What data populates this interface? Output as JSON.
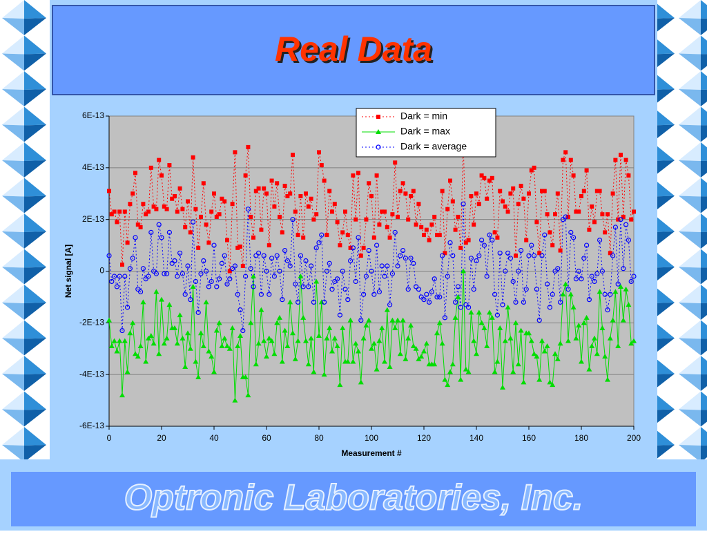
{
  "title": "Real Data",
  "footer": "Optronic Laboratories, Inc.",
  "chart_data": {
    "type": "line",
    "xlabel": "Measurement #",
    "ylabel": "Net signal [A]",
    "xlim": [
      0,
      200
    ],
    "xticks": [
      0,
      20,
      40,
      60,
      80,
      100,
      120,
      140,
      160,
      180,
      200
    ],
    "ylim": [
      -6e-13,
      6e-13
    ],
    "yticks": [
      {
        "value": -6e-13,
        "label": "-6E-13"
      },
      {
        "value": -4e-13,
        "label": "-4E-13"
      },
      {
        "value": -2e-13,
        "label": "-2E-13"
      },
      0,
      {
        "value": 2e-13,
        "label": "2E-13"
      },
      {
        "value": 4e-13,
        "label": "4E-13"
      },
      {
        "value": 6e-13,
        "label": "6E-13"
      }
    ],
    "grid": true,
    "legend": "top",
    "x": [
      0,
      1,
      2,
      3,
      4,
      5,
      6,
      7,
      8,
      9,
      10,
      11,
      12,
      13,
      14,
      15,
      16,
      17,
      18,
      19,
      20,
      21,
      22,
      23,
      24,
      25,
      26,
      27,
      28,
      29,
      30,
      31,
      32,
      33,
      34,
      35,
      36,
      37,
      38,
      39,
      40,
      41,
      42,
      43,
      44,
      45,
      46,
      47,
      48,
      49,
      50,
      51,
      52,
      53,
      54,
      55,
      56,
      57,
      58,
      59,
      60,
      61,
      62,
      63,
      64,
      65,
      66,
      67,
      68,
      69,
      70,
      71,
      72,
      73,
      74,
      75,
      76,
      77,
      78,
      79,
      80,
      81,
      82,
      83,
      84,
      85,
      86,
      87,
      88,
      89,
      90,
      91,
      92,
      93,
      94,
      95,
      96,
      97,
      98,
      99,
      100,
      101,
      102,
      103,
      104,
      105,
      106,
      107,
      108,
      109,
      110,
      111,
      112,
      113,
      114,
      115,
      116,
      117,
      118,
      119,
      120,
      121,
      122,
      123,
      124,
      125,
      126,
      127,
      128,
      129,
      130,
      131,
      132,
      133,
      134,
      135,
      136,
      137,
      138,
      139,
      140,
      141,
      142,
      143,
      144,
      145,
      146,
      147,
      148,
      149,
      150,
      151,
      152,
      153,
      154,
      155,
      156,
      157,
      158,
      159,
      160,
      161,
      162,
      163,
      164,
      165,
      166,
      167,
      168,
      169,
      170,
      171,
      172,
      173,
      174,
      175,
      176,
      177,
      178,
      179,
      180,
      181,
      182,
      183,
      184,
      185,
      186,
      187,
      188,
      189,
      190,
      191,
      192,
      193,
      194,
      195,
      196,
      197,
      198,
      199,
      200
    ],
    "series": [
      {
        "name": "Dark = min",
        "color": "#ff0000",
        "marker": "square",
        "line_style": "dotted",
        "values": [
          3.1e-13,
          2.2e-13,
          2.3e-13,
          1.9e-13,
          2.3e-13,
          2.5e-14,
          2.3e-13,
          1.1e-13,
          2.6e-13,
          3e-13,
          3.8e-13,
          1.8e-13,
          1.7e-13,
          2.6e-13,
          2.2e-13,
          2.3e-13,
          4e-13,
          2.5e-13,
          2.4e-13,
          4.3e-13,
          3.7e-13,
          2.5e-13,
          2.4e-13,
          4.1e-13,
          2.8e-13,
          2.9e-13,
          2.3e-13,
          3.2e-13,
          2.4e-13,
          1.7e-13,
          2.7e-13,
          1.5e-13,
          4.4e-13,
          2.4e-13,
          9e-14,
          2.1e-13,
          3.4e-13,
          1.8e-13,
          1.1e-13,
          2.3e-13,
          3e-13,
          2.1e-13,
          2.2e-13,
          2.8e-13,
          2.7e-13,
          1.2e-13,
          0,
          2.6e-13,
          4.6e-13,
          9e-14,
          9.5e-14,
          2e-14,
          3.7e-13,
          4.8e-13,
          2.1e-13,
          1.3e-13,
          3.1e-13,
          3.2e-13,
          1.6e-13,
          3.2e-13,
          3e-13,
          1e-13,
          3.5e-13,
          2.5e-13,
          3.4e-13,
          2.1e-13,
          1.5e-13,
          3.3e-13,
          2.9e-13,
          3e-13,
          4.5e-13,
          2.3e-13,
          1.4e-13,
          2.9e-13,
          1.3e-13,
          3e-13,
          2.5e-13,
          2.8e-13,
          2e-13,
          2.2e-13,
          4.6e-13,
          4.1e-13,
          3.5e-13,
          1.4e-13,
          3.1e-13,
          2.3e-13,
          2.6e-13,
          1.9e-13,
          1e-13,
          1.5e-13,
          2.3e-13,
          1.4e-13,
          9e-14,
          3.7e-13,
          2e-13,
          3.8e-13,
          6e-14,
          9e-14,
          2e-13,
          3.4e-13,
          2.9e-13,
          1.3e-13,
          3.7e-13,
          1.8e-13,
          2.3e-13,
          2.3e-13,
          1.7e-13,
          1.3e-13,
          2.2e-13,
          4.2e-13,
          2.1e-13,
          3.1e-13,
          3.4e-13,
          3e-13,
          2e-13,
          2.9e-13,
          3.1e-13,
          1.8e-13,
          2.6e-13,
          1.7e-13,
          1.4e-13,
          1.6e-13,
          1.2e-13,
          1.8e-13,
          2.1e-13,
          1.4e-13,
          1.4e-13,
          3.1e-13,
          7e-14,
          2.4e-13,
          3.5e-13,
          2.7e-13,
          1.6e-13,
          2.1e-13,
          9e-14,
          5e-13,
          1.1e-13,
          1.2e-13,
          2.9e-13,
          1.8e-13,
          3e-13,
          2.6e-13,
          3.7e-13,
          3.6e-13,
          2.8e-13,
          3.5e-13,
          3.6e-13,
          1.5e-13,
          1.3e-13,
          3.1e-13,
          2.7e-13,
          2.5e-13,
          2.3e-13,
          3e-13,
          3.2e-13,
          6e-14,
          2.6e-13,
          3.3e-13,
          2.8e-13,
          1.2e-13,
          3e-13,
          3.9e-13,
          4e-13,
          1.9e-13,
          7e-14,
          3.1e-13,
          3.1e-13,
          2.2e-13,
          1.5e-13,
          1e-13,
          2.2e-13,
          3e-13,
          8e-14,
          4.3e-13,
          4.6e-13,
          2.1e-13,
          4.3e-13,
          3.7e-13,
          2.3e-13,
          2.3e-13,
          2.9e-13,
          3.1e-13,
          3.9e-13,
          1.6e-13,
          2.5e-13,
          1.9e-13,
          3.1e-13,
          3.1e-13,
          2.2e-13,
          1.5e-13,
          2.2e-13,
          7e-14,
          3e-13,
          4.3e-13,
          2e-13,
          4.5e-13,
          2.1e-13,
          4.3e-13,
          3.7e-13,
          2e-13,
          2.3e-13
        ]
      },
      {
        "name": "Dark = max",
        "color": "#00dd00",
        "marker": "triangle",
        "line_style": "solid",
        "values": [
          -1.9e-13,
          -2.9e-13,
          -2.7e-13,
          -3.1e-13,
          -2.7e-13,
          -4.8e-13,
          -2.7e-13,
          -3.9e-13,
          -2.4e-13,
          -2e-13,
          -3.2e-13,
          -3.3e-13,
          -2.9e-13,
          -1.2e-13,
          -3.5e-13,
          -2.6e-13,
          -2.5e-13,
          -2.8e-13,
          -8e-14,
          -3.2e-13,
          -1.1e-13,
          -2.8e-13,
          -2.6e-13,
          -1.3e-13,
          -2.2e-13,
          -2.2e-13,
          -2.8e-13,
          -1.7e-13,
          -2.6e-13,
          -3.7e-13,
          -2.4e-13,
          -3e-13,
          -6e-14,
          -3.5e-13,
          -4.1e-13,
          -2.4e-13,
          -2.9e-13,
          -1.2e-13,
          -3.1e-13,
          -3.3e-13,
          -3.9e-13,
          -2.3e-13,
          -2e-13,
          -2.9e-13,
          -2.6e-13,
          -2.9e-13,
          -3e-13,
          -2.2e-13,
          -5e-13,
          -2.9e-13,
          -2.5e-13,
          -4.1e-13,
          -4.1e-13,
          -4.8e-13,
          -2e-13,
          -2e-14,
          -3.6e-13,
          -2.8e-13,
          -1.5e-13,
          -2.7e-13,
          -3.3e-13,
          -2.6e-13,
          -2.7e-13,
          -3.2e-13,
          -2e-13,
          -1.8e-13,
          -3.5e-13,
          -2.3e-13,
          -2.9e-13,
          -1.2e-13,
          -2.4e-13,
          -3.4e-13,
          -2.7e-13,
          -2e-14,
          -1.8e-13,
          -2.7e-13,
          -3.6e-13,
          -2.6e-13,
          -3.9e-13,
          -4e-14,
          -2.5e-13,
          -1.2e-13,
          -4e-13,
          -2.6e-13,
          -2.2e-13,
          -3.1e-13,
          -2.6e-13,
          -2.9e-13,
          -4.4e-13,
          -2.2e-13,
          -3.5e-13,
          -3.5e-13,
          -1.9e-13,
          -3.5e-13,
          -2.8e-13,
          -3.1e-13,
          -4.3e-13,
          -2.6e-13,
          -2.1e-13,
          -1.9e-13,
          -3e-13,
          -2.8e-13,
          -3.8e-13,
          -2.7e-13,
          -2.2e-13,
          -3.5e-13,
          -1.5e-13,
          -3.7e-13,
          -1.9e-13,
          -2.2e-13,
          -1.9e-13,
          -3.2e-13,
          -1.9e-13,
          -3.4e-13,
          -2.6e-13,
          -2.1e-13,
          -2.9e-13,
          -3e-13,
          -3.4e-13,
          -3.3e-13,
          -3.1e-13,
          -2.8e-13,
          -3.6e-13,
          -3.6e-13,
          -3.6e-13,
          -2.4e-13,
          -2e-13,
          -2.8e-13,
          -4.2e-13,
          -4.4e-13,
          -3.9e-13,
          -3.6e-13,
          -1.8e-13,
          -1e-13,
          -4.2e-13,
          0,
          -3.8e-13,
          -3.9e-13,
          -1.6e-13,
          -2.7e-13,
          -3.2e-13,
          -1.6e-13,
          -2e-13,
          -2.2e-13,
          -2.9e-13,
          -1.6e-13,
          -1.8e-13,
          -3.9e-13,
          -3.5e-13,
          -2.2e-13,
          -4.5e-13,
          -2.7e-13,
          -1.4e-13,
          -2.6e-13,
          -3.9e-13,
          -2e-13,
          -3.6e-13,
          -2.3e-13,
          -4.3e-13,
          -2.4e-13,
          -2.4e-13,
          -2.7e-13,
          -3.2e-13,
          -3.3e-13,
          -4.2e-13,
          -2.7e-13,
          -3.1e-13,
          -2.9e-13,
          -4.3e-13,
          -4.4e-13,
          -3.2e-13,
          -3.4e-13,
          -2.8e-13,
          -9e-14,
          -5e-14,
          -2.7e-13,
          -9e-14,
          -1.4e-13,
          -2.6e-13,
          -2.1e-13,
          -3.5e-13,
          -2e-13,
          -1.8e-13,
          -3.8e-13,
          -2.9e-13,
          -2.6e-13,
          -3.2e-13,
          -8e-14,
          -2.2e-13,
          -3.3e-13,
          -4.2e-13,
          -2.6e-13,
          -1.9e-13,
          -8e-14,
          -2.9e-13,
          -6e-14,
          -1.9e-13,
          -7e-14,
          -1.3e-13,
          -2.8e-13,
          -2.7e-13
        ]
      },
      {
        "name": "Dark = average",
        "color": "#0000ff",
        "marker": "circle",
        "line_style": "dotted",
        "values": [
          6e-14,
          -4e-14,
          -2e-14,
          -6e-14,
          -2e-14,
          -2.3e-13,
          -2e-14,
          -1.4e-13,
          1e-14,
          5e-14,
          1.3e-13,
          -7e-14,
          -8e-14,
          1e-14,
          -3e-14,
          -2e-14,
          1.5e-13,
          0,
          -1e-14,
          1.8e-13,
          1.3e-13,
          -1e-14,
          -1e-14,
          1.5e-13,
          3e-14,
          4e-14,
          -2e-14,
          7e-14,
          -1e-14,
          -9e-14,
          2e-14,
          -1.1e-13,
          1.9e-13,
          -4e-14,
          -1.6e-13,
          -1e-14,
          4e-14,
          0,
          -6e-14,
          -4e-14,
          1e-13,
          -6e-14,
          -3e-14,
          3e-14,
          6e-14,
          -5e-14,
          -3e-14,
          1e-14,
          2e-14,
          -9e-14,
          -1.5e-13,
          -2.3e-13,
          -2e-14,
          2.4e-13,
          1e-14,
          -6e-14,
          6e-14,
          7e-14,
          -9e-14,
          6e-14,
          0,
          -9e-14,
          5e-14,
          -2e-14,
          6e-14,
          0,
          -1.1e-13,
          8e-14,
          4e-14,
          2e-14,
          2e-13,
          -5e-14,
          -1.2e-13,
          6e-14,
          -6e-14,
          4e-14,
          -6e-14,
          2e-14,
          -1.2e-13,
          9e-14,
          1.1e-13,
          1.4e-13,
          -1.2e-13,
          0,
          3e-14,
          -7e-14,
          -4e-14,
          -3e-14,
          -1.7e-13,
          0,
          -7e-14,
          -1.1e-13,
          4e-14,
          9e-14,
          -4e-14,
          1.3e-13,
          -1.9e-13,
          -9e-14,
          -2e-14,
          8e-14,
          0,
          -9e-14,
          1e-13,
          -8e-14,
          2e-14,
          -2e-14,
          2e-14,
          -1.3e-13,
          -1e-14,
          1.5e-13,
          2e-14,
          6e-14,
          8e-14,
          5e-14,
          -7e-14,
          5e-14,
          3e-14,
          -6e-14,
          -7e-14,
          -1e-13,
          -1.1e-13,
          -9e-14,
          -1.2e-13,
          -8e-14,
          -3e-14,
          -1e-13,
          -1e-13,
          6e-14,
          -1.8e-13,
          -2e-14,
          1.1e-13,
          6e-14,
          -1.2e-13,
          -6e-14,
          -1.4e-13,
          2.6e-13,
          -1.3e-13,
          -1.4e-13,
          5e-14,
          -7e-14,
          4e-14,
          6e-14,
          1.2e-13,
          1e-13,
          -2e-14,
          1.4e-13,
          1.2e-13,
          -9e-14,
          -1.7e-13,
          7e-14,
          -1.3e-13,
          0,
          7e-14,
          5e-14,
          -4e-14,
          -1.2e-13,
          0,
          8e-14,
          -1.2e-13,
          -7e-14,
          6e-14,
          1e-13,
          6e-14,
          -7e-14,
          -1.9e-13,
          6e-14,
          1.4e-13,
          -5e-14,
          -1.4e-13,
          -9e-14,
          0,
          1e-14,
          -1.2e-13,
          2e-13,
          2.1e-13,
          -7e-14,
          1.5e-13,
          1.3e-13,
          -3e-14,
          0,
          -3e-14,
          5e-14,
          1e-13,
          -1.1e-13,
          -2e-14,
          -4e-14,
          -1e-14,
          1.2e-13,
          0,
          -9e-14,
          -1.5e-13,
          -9e-14,
          6e-14,
          1.7e-13,
          -5e-14,
          2e-13,
          1e-14,
          1.8e-13,
          1.2e-13,
          -4e-14,
          -2e-14
        ]
      }
    ]
  }
}
